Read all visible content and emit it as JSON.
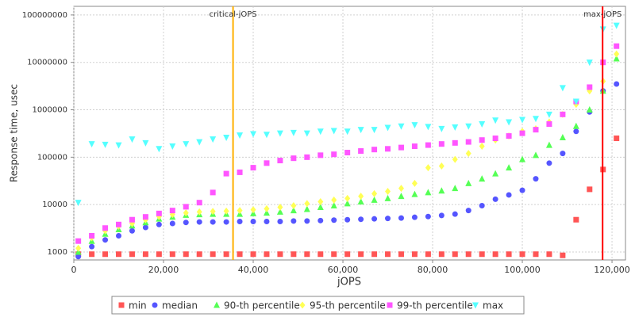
{
  "chart_data": {
    "type": "scatter",
    "xlabel": "jOPS",
    "ylabel": "Response time, usec",
    "log_y": true,
    "grid": true,
    "xlim": [
      0,
      123000
    ],
    "ylim": [
      680,
      152000000
    ],
    "xticks": [
      {
        "value": 0,
        "label": "0"
      },
      {
        "value": 20000,
        "label": "20,000"
      },
      {
        "value": 40000,
        "label": "40,000"
      },
      {
        "value": 60000,
        "label": "60,000"
      },
      {
        "value": 80000,
        "label": "80,000"
      },
      {
        "value": 100000,
        "label": "100,000"
      },
      {
        "value": 120000,
        "label": "120,000"
      }
    ],
    "yticks": [
      1000,
      10000,
      100000,
      1000000,
      10000000,
      100000000
    ],
    "markers": [
      {
        "label": "critical-jOPS",
        "value": 35500,
        "color": "#ffb000"
      },
      {
        "label": "max-jOPS",
        "value": 117900,
        "color": "#ff0000"
      }
    ],
    "x": [
      1000,
      4000,
      7000,
      10000,
      13000,
      16000,
      19000,
      22000,
      25000,
      28000,
      31000,
      34000,
      37000,
      40000,
      43000,
      46000,
      49000,
      52000,
      55000,
      58000,
      61000,
      64000,
      67000,
      70000,
      73000,
      76000,
      79000,
      82000,
      85000,
      88000,
      91000,
      94000,
      97000,
      100000,
      103000,
      106000,
      109000,
      112000,
      115000,
      118000,
      121000
    ],
    "series": [
      {
        "name": "min",
        "color": "#ff5555",
        "marker": "square",
        "values": [
          900,
          900,
          900,
          900,
          900,
          900,
          900,
          900,
          900,
          900,
          900,
          900,
          900,
          900,
          900,
          900,
          900,
          900,
          900,
          900,
          900,
          900,
          900,
          900,
          900,
          900,
          900,
          900,
          900,
          900,
          900,
          900,
          900,
          900,
          900,
          900,
          850,
          4800,
          21000,
          55000,
          250000
        ]
      },
      {
        "name": "median",
        "color": "#5555ff",
        "marker": "circle",
        "values": [
          800,
          1300,
          1800,
          2200,
          2800,
          3300,
          3800,
          4000,
          4200,
          4300,
          4300,
          4300,
          4400,
          4400,
          4400,
          4400,
          4500,
          4500,
          4600,
          4700,
          4800,
          4900,
          5000,
          5100,
          5200,
          5400,
          5600,
          5900,
          6300,
          7500,
          9500,
          13000,
          16000,
          20000,
          35000,
          75000,
          120000,
          350000,
          900000,
          2500000,
          3500000
        ]
      },
      {
        "name": "90-th percentile",
        "color": "#55ff55",
        "marker": "triangle",
        "values": [
          1000,
          1700,
          2400,
          3000,
          3600,
          4200,
          5000,
          5500,
          6000,
          6200,
          6300,
          6300,
          6300,
          6500,
          6700,
          7000,
          7500,
          8000,
          8800,
          9500,
          10500,
          11500,
          12500,
          13500,
          15000,
          16500,
          18000,
          19500,
          22000,
          28000,
          35000,
          45000,
          60000,
          90000,
          110000,
          180000,
          260000,
          450000,
          1000000,
          2500000,
          12000000
        ]
      },
      {
        "name": "95-th percentile",
        "color": "#ffff55",
        "marker": "diamond",
        "values": [
          1200,
          2000,
          2800,
          3500,
          4000,
          4800,
          5600,
          6200,
          6700,
          7000,
          7200,
          7300,
          7500,
          7800,
          8200,
          8800,
          9500,
          10500,
          11500,
          12500,
          13500,
          15000,
          17000,
          19000,
          22000,
          28000,
          60000,
          65000,
          90000,
          120000,
          170000,
          230000,
          280000,
          350000,
          400000,
          550000,
          800000,
          1300000,
          2500000,
          4000000,
          15000000
        ]
      },
      {
        "name": "99-th percentile",
        "color": "#ff55ff",
        "marker": "square",
        "values": [
          1700,
          2200,
          3200,
          3800,
          4800,
          5500,
          6500,
          7500,
          9000,
          11000,
          18000,
          45000,
          48000,
          60000,
          75000,
          85000,
          95000,
          100000,
          110000,
          115000,
          125000,
          135000,
          145000,
          150000,
          160000,
          170000,
          180000,
          190000,
          200000,
          210000,
          230000,
          250000,
          280000,
          320000,
          380000,
          500000,
          800000,
          1500000,
          3000000,
          10000000,
          22000000
        ]
      },
      {
        "name": "max",
        "color": "#55ffff",
        "marker": "triangle-down",
        "values": [
          11000,
          190000,
          185000,
          180000,
          240000,
          200000,
          150000,
          170000,
          190000,
          210000,
          240000,
          260000,
          290000,
          310000,
          300000,
          320000,
          330000,
          320000,
          350000,
          360000,
          350000,
          380000,
          380000,
          420000,
          450000,
          480000,
          440000,
          400000,
          430000,
          450000,
          500000,
          600000,
          550000,
          620000,
          650000,
          800000,
          2900000,
          1500000,
          10000000,
          50000000,
          60000000
        ]
      }
    ]
  }
}
